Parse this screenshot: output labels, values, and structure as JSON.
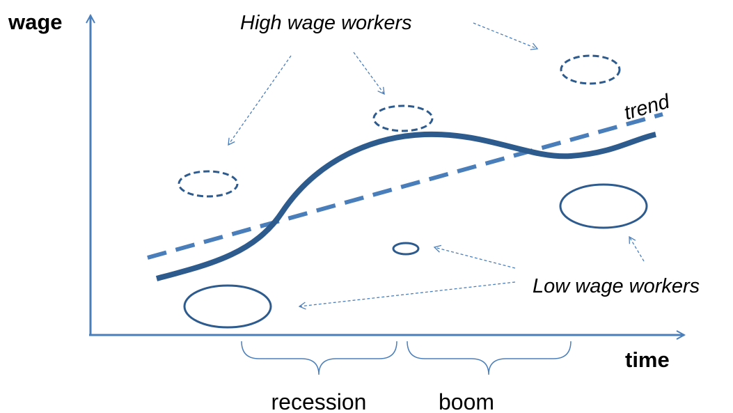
{
  "y_axis_label": "wage",
  "x_axis_label": "time",
  "high_label": "High wage workers",
  "trend_label": "trend",
  "low_label": "Low wage workers",
  "phases": [
    "recession",
    "boom"
  ]
}
